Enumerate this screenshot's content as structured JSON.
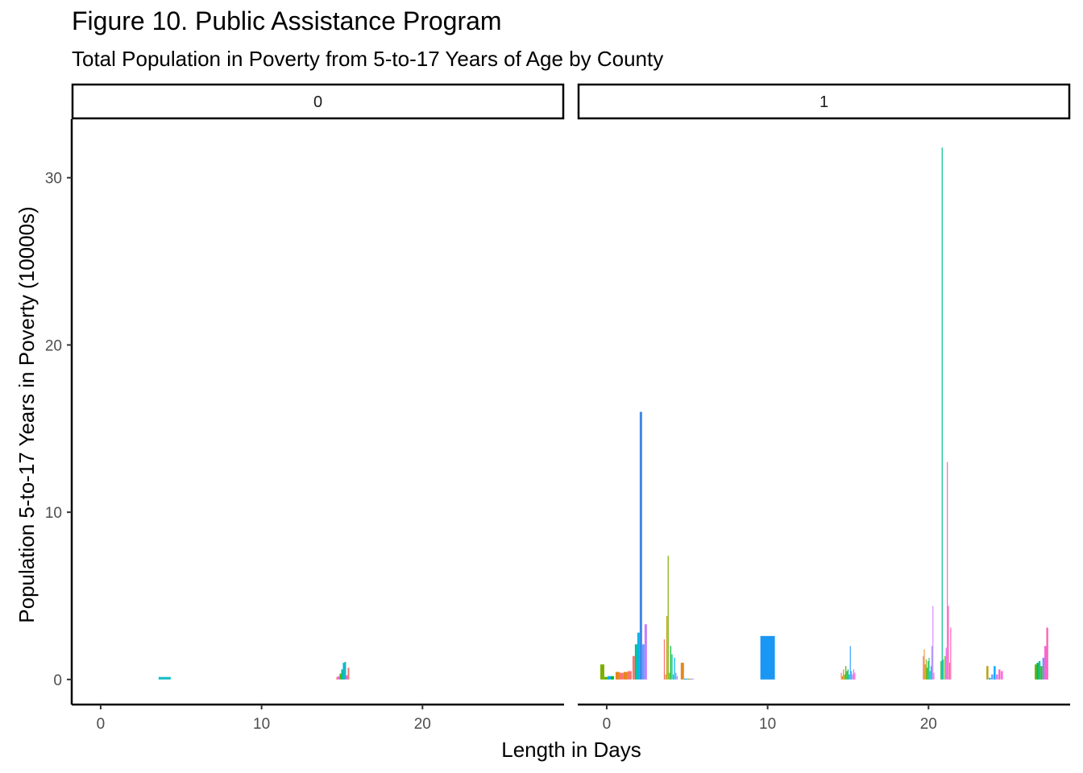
{
  "chart_data": {
    "type": "bar",
    "title": "Figure 10. Public Assistance Program",
    "subtitle": "Total Population in Poverty from 5-to-17 Years of Age by County",
    "xlabel": "Length in Days",
    "ylabel": "Population 5-to-17 Years in Poverty (10000s)",
    "xlim": [
      -1.8,
      28.8
    ],
    "ylim": [
      -1.5,
      33.5
    ],
    "x_ticks": [
      0,
      10,
      20
    ],
    "y_ticks": [
      0,
      10,
      20,
      30
    ],
    "grid": false,
    "legend": "none",
    "facet_variable_values": [
      "0",
      "1"
    ],
    "panels": [
      {
        "facet": "0",
        "bars": [
          {
            "x": 3.6,
            "w": 0.15,
            "y": 0.15,
            "color": "#00BFC4"
          },
          {
            "x": 3.75,
            "w": 0.15,
            "y": 0.15,
            "color": "#1DB7B0"
          },
          {
            "x": 3.9,
            "w": 0.15,
            "y": 0.15,
            "color": "#00B8E5"
          },
          {
            "x": 4.05,
            "w": 0.15,
            "y": 0.15,
            "color": "#1DB7B0"
          },
          {
            "x": 4.2,
            "w": 0.15,
            "y": 0.15,
            "color": "#00BFC4"
          },
          {
            "x": 14.65,
            "w": 0.1,
            "y": 0.15,
            "color": "#F8766D"
          },
          {
            "x": 14.75,
            "w": 0.1,
            "y": 0.2,
            "color": "#E76BF3"
          },
          {
            "x": 14.85,
            "w": 0.1,
            "y": 0.35,
            "color": "#53B400"
          },
          {
            "x": 14.95,
            "w": 0.1,
            "y": 0.6,
            "color": "#00C094"
          },
          {
            "x": 15.05,
            "w": 0.1,
            "y": 1.0,
            "color": "#00B6EB"
          },
          {
            "x": 15.15,
            "w": 0.1,
            "y": 1.05,
            "color": "#1DB7B0"
          },
          {
            "x": 15.25,
            "w": 0.1,
            "y": 0.25,
            "color": "#FB61D7"
          },
          {
            "x": 15.35,
            "w": 0.1,
            "y": 0.7,
            "color": "#F8766D"
          }
        ]
      },
      {
        "facet": "1",
        "bars": [
          {
            "x": -0.4,
            "w": 0.25,
            "y": 0.9,
            "color": "#7CAE00"
          },
          {
            "x": -0.15,
            "w": 0.2,
            "y": 0.15,
            "color": "#53B400"
          },
          {
            "x": 0.05,
            "w": 0.2,
            "y": 0.2,
            "color": "#00A9FF"
          },
          {
            "x": 0.25,
            "w": 0.2,
            "y": 0.2,
            "color": "#00B81F"
          },
          {
            "x": 0.55,
            "w": 0.25,
            "y": 0.45,
            "color": "#E7861B"
          },
          {
            "x": 0.8,
            "w": 0.25,
            "y": 0.4,
            "color": "#F8766D"
          },
          {
            "x": 1.05,
            "w": 0.25,
            "y": 0.45,
            "color": "#E7861B"
          },
          {
            "x": 1.3,
            "w": 0.25,
            "y": 0.5,
            "color": "#F8766D"
          },
          {
            "x": 1.6,
            "w": 0.15,
            "y": 1.4,
            "color": "#F8766D"
          },
          {
            "x": 1.75,
            "w": 0.15,
            "y": 2.1,
            "color": "#00C094"
          },
          {
            "x": 1.9,
            "w": 0.15,
            "y": 2.8,
            "color": "#00B6EB"
          },
          {
            "x": 2.05,
            "w": 0.15,
            "y": 16.0,
            "color": "#3D88E6"
          },
          {
            "x": 2.2,
            "w": 0.15,
            "y": 2.1,
            "color": "#619CFF"
          },
          {
            "x": 2.35,
            "w": 0.15,
            "y": 3.3,
            "color": "#C77CFF"
          },
          {
            "x": 3.55,
            "w": 0.06,
            "y": 2.4,
            "color": "#F8766D"
          },
          {
            "x": 3.63,
            "w": 0.06,
            "y": 0.3,
            "color": "#E7861B"
          },
          {
            "x": 3.71,
            "w": 0.06,
            "y": 3.8,
            "color": "#B79F00"
          },
          {
            "x": 3.79,
            "w": 0.06,
            "y": 7.4,
            "color": "#7CAE00"
          },
          {
            "x": 3.87,
            "w": 0.06,
            "y": 0.4,
            "color": "#53B400"
          },
          {
            "x": 3.95,
            "w": 0.06,
            "y": 2.0,
            "color": "#00BA38"
          },
          {
            "x": 4.03,
            "w": 0.06,
            "y": 1.5,
            "color": "#00C08B"
          },
          {
            "x": 4.11,
            "w": 0.06,
            "y": 0.3,
            "color": "#00BFC4"
          },
          {
            "x": 4.19,
            "w": 0.06,
            "y": 1.3,
            "color": "#00B4F0"
          },
          {
            "x": 4.27,
            "w": 0.06,
            "y": 0.4,
            "color": "#619CFF"
          },
          {
            "x": 4.35,
            "w": 0.06,
            "y": 0.2,
            "color": "#DB72FB"
          },
          {
            "x": 4.6,
            "w": 0.2,
            "y": 1.0,
            "color": "#E7861B"
          },
          {
            "x": 4.8,
            "w": 0.2,
            "y": 0.05,
            "color": "#00A9FF"
          },
          {
            "x": 5.0,
            "w": 0.2,
            "y": 0.05,
            "color": "#7CAE00"
          },
          {
            "x": 5.2,
            "w": 0.2,
            "y": 0.05,
            "color": "#C77CFF"
          },
          {
            "x": 9.55,
            "w": 0.9,
            "y": 2.6,
            "color": "#1A97F5"
          },
          {
            "x": 14.55,
            "w": 0.06,
            "y": 0.4,
            "color": "#F8766D"
          },
          {
            "x": 14.62,
            "w": 0.06,
            "y": 0.2,
            "color": "#E7861B"
          },
          {
            "x": 14.69,
            "w": 0.06,
            "y": 0.6,
            "color": "#B79F00"
          },
          {
            "x": 14.76,
            "w": 0.06,
            "y": 0.3,
            "color": "#7CAE00"
          },
          {
            "x": 14.83,
            "w": 0.06,
            "y": 0.8,
            "color": "#53B400"
          },
          {
            "x": 14.9,
            "w": 0.06,
            "y": 0.5,
            "color": "#00BA38"
          },
          {
            "x": 14.97,
            "w": 0.06,
            "y": 0.6,
            "color": "#00C08B"
          },
          {
            "x": 15.04,
            "w": 0.06,
            "y": 0.3,
            "color": "#00BFC4"
          },
          {
            "x": 15.11,
            "w": 0.06,
            "y": 2.0,
            "color": "#35A2FF"
          },
          {
            "x": 15.18,
            "w": 0.06,
            "y": 0.5,
            "color": "#619CFF"
          },
          {
            "x": 15.25,
            "w": 0.06,
            "y": 0.3,
            "color": "#C77CFF"
          },
          {
            "x": 15.32,
            "w": 0.06,
            "y": 0.6,
            "color": "#E76BF3"
          },
          {
            "x": 15.39,
            "w": 0.06,
            "y": 0.4,
            "color": "#FF62BC"
          },
          {
            "x": 19.65,
            "w": 0.05,
            "y": 1.4,
            "color": "#F8766D"
          },
          {
            "x": 19.71,
            "w": 0.05,
            "y": 1.8,
            "color": "#E7861B"
          },
          {
            "x": 19.77,
            "w": 0.05,
            "y": 0.9,
            "color": "#B79F00"
          },
          {
            "x": 19.83,
            "w": 0.05,
            "y": 1.2,
            "color": "#7CAE00"
          },
          {
            "x": 19.89,
            "w": 0.05,
            "y": 0.7,
            "color": "#53B400"
          },
          {
            "x": 19.95,
            "w": 0.05,
            "y": 1.1,
            "color": "#00BA38"
          },
          {
            "x": 20.01,
            "w": 0.05,
            "y": 1.3,
            "color": "#00C08B"
          },
          {
            "x": 20.07,
            "w": 0.05,
            "y": 0.5,
            "color": "#00BFC4"
          },
          {
            "x": 20.13,
            "w": 0.05,
            "y": 0.8,
            "color": "#00B4F0"
          },
          {
            "x": 20.19,
            "w": 0.05,
            "y": 2.0,
            "color": "#619CFF"
          },
          {
            "x": 20.25,
            "w": 0.05,
            "y": 4.4,
            "color": "#DB72FB"
          },
          {
            "x": 20.31,
            "w": 0.05,
            "y": 0.4,
            "color": "#FF61C3"
          },
          {
            "x": 20.75,
            "w": 0.06,
            "y": 1.1,
            "color": "#00BA38"
          },
          {
            "x": 20.82,
            "w": 0.06,
            "y": 31.8,
            "color": "#00C08B"
          },
          {
            "x": 20.89,
            "w": 0.06,
            "y": 1.2,
            "color": "#00B4F0"
          },
          {
            "x": 21.0,
            "w": 0.06,
            "y": 1.4,
            "color": "#7CAE00"
          },
          {
            "x": 21.07,
            "w": 0.06,
            "y": 1.9,
            "color": "#E76BF3"
          },
          {
            "x": 21.14,
            "w": 0.06,
            "y": 13.0,
            "color": "#FB61D7"
          },
          {
            "x": 21.21,
            "w": 0.06,
            "y": 4.4,
            "color": "#FF62BC"
          },
          {
            "x": 21.28,
            "w": 0.06,
            "y": 1.0,
            "color": "#F8766D"
          },
          {
            "x": 21.35,
            "w": 0.06,
            "y": 3.1,
            "color": "#FF64B0"
          },
          {
            "x": 23.6,
            "w": 0.12,
            "y": 0.8,
            "color": "#B79F00"
          },
          {
            "x": 23.75,
            "w": 0.12,
            "y": 0.1,
            "color": "#00A9FF"
          },
          {
            "x": 23.9,
            "w": 0.12,
            "y": 0.3,
            "color": "#619CFF"
          },
          {
            "x": 24.05,
            "w": 0.12,
            "y": 0.8,
            "color": "#00A9FF"
          },
          {
            "x": 24.2,
            "w": 0.12,
            "y": 0.3,
            "color": "#C77CFF"
          },
          {
            "x": 24.35,
            "w": 0.12,
            "y": 0.6,
            "color": "#FF61C3"
          },
          {
            "x": 24.5,
            "w": 0.12,
            "y": 0.5,
            "color": "#F564E3"
          },
          {
            "x": 26.6,
            "w": 0.12,
            "y": 0.9,
            "color": "#7CAE00"
          },
          {
            "x": 26.72,
            "w": 0.12,
            "y": 1.0,
            "color": "#00BA38"
          },
          {
            "x": 26.84,
            "w": 0.12,
            "y": 1.1,
            "color": "#00BFC4"
          },
          {
            "x": 26.96,
            "w": 0.12,
            "y": 0.8,
            "color": "#53B400"
          },
          {
            "x": 27.08,
            "w": 0.12,
            "y": 1.3,
            "color": "#619CFF"
          },
          {
            "x": 27.2,
            "w": 0.12,
            "y": 2.0,
            "color": "#FB61D7"
          },
          {
            "x": 27.32,
            "w": 0.12,
            "y": 3.1,
            "color": "#FF62BC"
          }
        ]
      }
    ]
  }
}
